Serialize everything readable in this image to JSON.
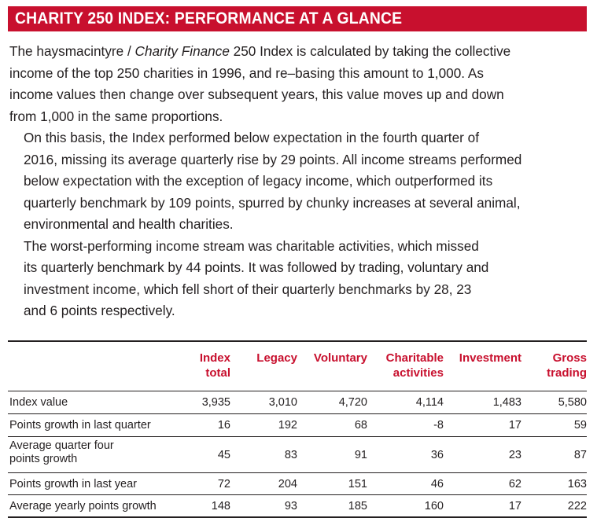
{
  "title": "CHARITY 250 INDEX: PERFORMANCE AT A GLANCE",
  "paragraphs": [
    {
      "lines": [
        "The haysmacintyre / Charity Finance 250 Index is calculated by taking the collective",
        "income of the top 250 charities in 1996, and re–basing this amount to 1,000. As",
        "income values then change over subsequent years, this value moves up and down",
        "from 1,000 in the same proportions."
      ]
    },
    {
      "lines": [
        "On this basis, the Index performed below expectation in the fourth quarter of",
        "2016, missing its average quarterly rise by 29 points. All income streams performed",
        "below expectation with the exception of legacy income, which outperformed its",
        "quarterly benchmark by 109 points, spurred by chunky increases at several animal,",
        "environmental and health charities."
      ]
    },
    {
      "lines": [
        "The worst-performing income stream was charitable activities, which missed",
        "its quarterly benchmark by 44 points. It was followed by trading, voluntary and",
        "investment income, which fell short of their quarterly benchmarks by 28, 23",
        "and 6 points respectively."
      ]
    }
  ],
  "table": {
    "columns": [
      {
        "line1": "Index",
        "line2": "total"
      },
      {
        "line1": "Legacy",
        "line2": ""
      },
      {
        "line1": "Voluntary",
        "line2": ""
      },
      {
        "line1": "Charitable",
        "line2": "activities"
      },
      {
        "line1": "Investment",
        "line2": ""
      },
      {
        "line1": "Gross",
        "line2": "trading"
      }
    ],
    "rows": [
      {
        "label1": "Index value",
        "label2": "",
        "values": [
          "3,935",
          "3,010",
          "4,720",
          "4,114",
          "1,483",
          "5,580"
        ]
      },
      {
        "label1": "Points growth in last quarter",
        "label2": "",
        "values": [
          "16",
          "192",
          "68",
          "-8",
          "17",
          "59"
        ]
      },
      {
        "label1": "Average quarter four",
        "label2": "points growth",
        "values": [
          "45",
          "83",
          "91",
          "36",
          "23",
          "87"
        ]
      },
      {
        "label1": "Points growth in last year",
        "label2": "",
        "values": [
          "72",
          "204",
          "151",
          "46",
          "62",
          "163"
        ]
      },
      {
        "label1": "Average yearly points growth",
        "label2": "",
        "values": [
          "148",
          "93",
          "185",
          "160",
          "17",
          "222"
        ]
      }
    ]
  },
  "colors": {
    "accent": "#c8102e",
    "text": "#231f20"
  }
}
